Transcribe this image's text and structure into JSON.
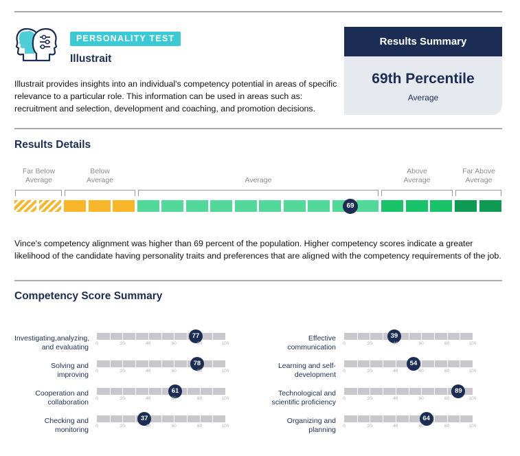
{
  "header": {
    "badge": "PERSONALITY TEST",
    "product": "Illustrait",
    "intro": "Illustrait provides insights into an individual's competency potential in areas of specific relevance to a particular role. This information can be used in areas such as: recruitment and selection, development and coaching, and promotion decisions."
  },
  "summary": {
    "title": "Results Summary",
    "value": "69th Percentile",
    "band": "Average"
  },
  "results": {
    "title": "Results Details",
    "bands": [
      {
        "line1": "Far Below",
        "line2": "Average"
      },
      {
        "line1": "Below",
        "line2": "Average"
      },
      {
        "line1": "",
        "line2": "Average"
      },
      {
        "line1": "Above",
        "line2": "Average"
      },
      {
        "line1": "Far Above",
        "line2": "Average"
      }
    ],
    "score": "69",
    "description": "Vince's competency alignment was higher than 69 percent of the population. Higher competency scores indicate a greater likelihood of the candidate having personality traits and preferences that are aligned with the competency requirements of the job."
  },
  "competency": {
    "title": "Competency Score Summary",
    "ticks": [
      "0",
      "20",
      "40",
      "60",
      "80",
      "100"
    ],
    "items": [
      {
        "line1": "Investigating,analyzing,",
        "line2": "and evaluating",
        "score": 77
      },
      {
        "line1": "Solving and",
        "line2": "improving",
        "score": 78
      },
      {
        "line1": "Cooperation and",
        "line2": "collaboration",
        "score": 61
      },
      {
        "line1": "Checking and",
        "line2": "monitoring",
        "score": 37
      },
      {
        "line1": "Effective",
        "line2": "communication",
        "score": 39
      },
      {
        "line1": "Learning and self-",
        "line2": "development",
        "score": 54
      },
      {
        "line1": "Technological and",
        "line2": "scientific proficiency",
        "score": 89
      },
      {
        "line1": "Organizing and",
        "line2": "planning",
        "score": 64
      }
    ]
  },
  "colors": {
    "navy": "#1b2d55",
    "teal": "#3cc9d6",
    "orange": "#f8b62b",
    "light_green": "#52d898",
    "mid_green": "#19c36a",
    "dark_green": "#0f9a54"
  }
}
